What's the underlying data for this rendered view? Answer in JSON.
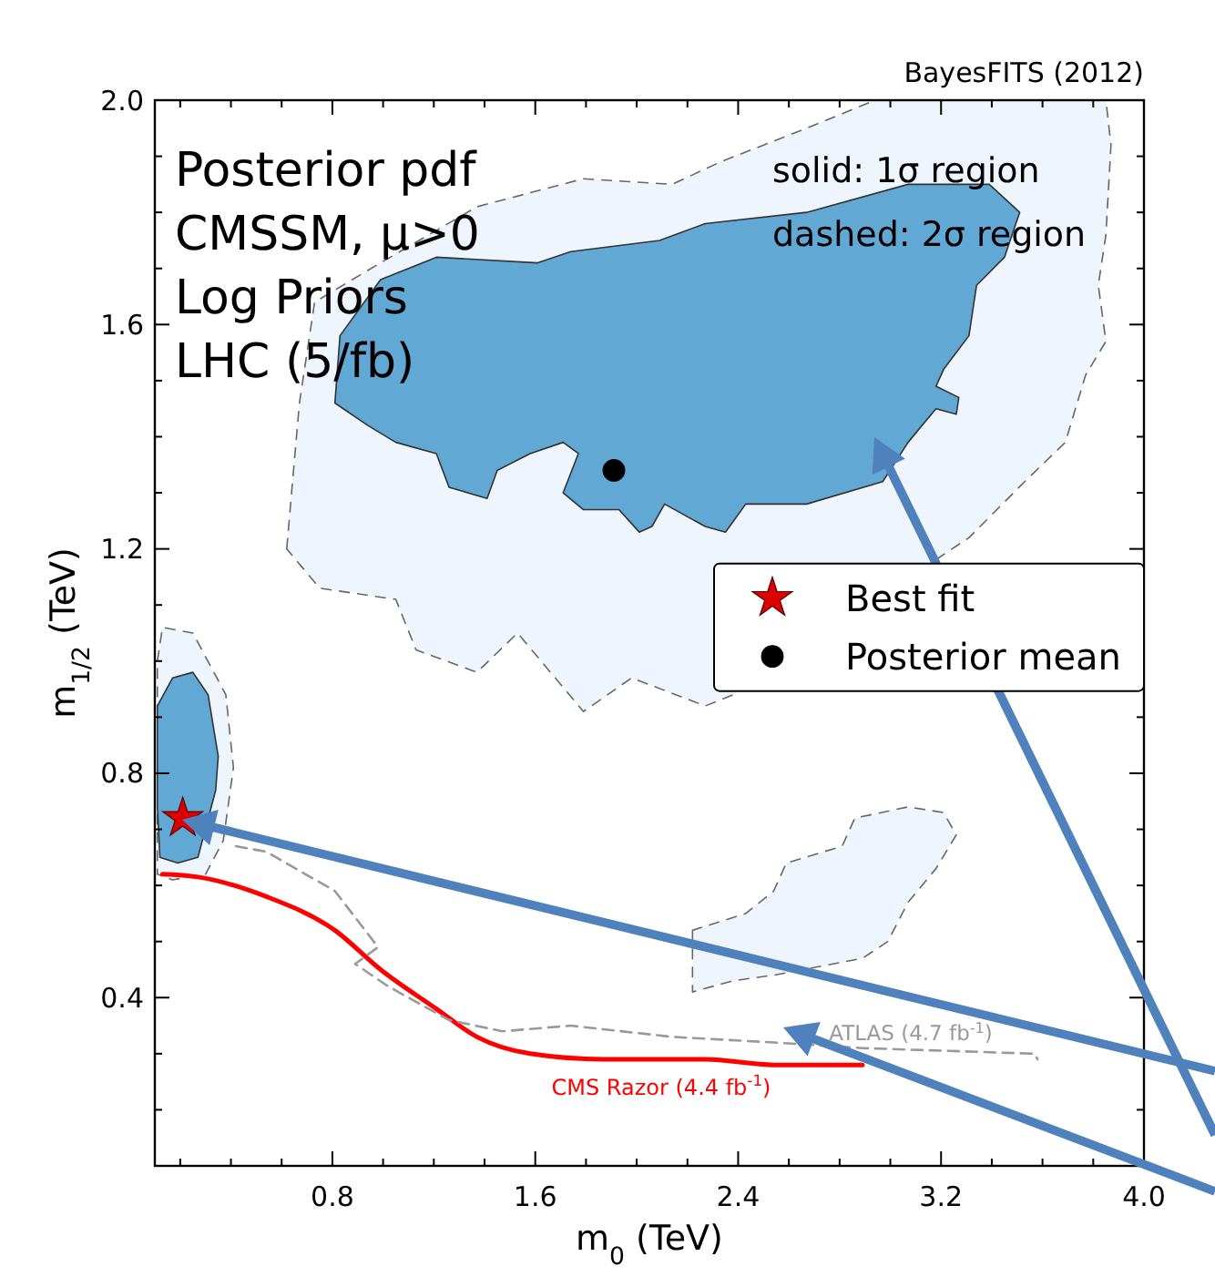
{
  "chart_data": {
    "type": "line",
    "annotations": [
      "Posterior pdf",
      "CMSSM, μ>0",
      "Log Priors",
      "LHC (5/fb)",
      "solid: 1σ region",
      "dashed: 2σ region",
      "BayesFITS (2012)",
      "CMS Razor (4.4 fb$^{-1}$)",
      "ATLAS (4.7 fb$^{-1}$)"
    ],
    "xlabel": "m$_{0}$ (TeV)",
    "ylabel": "m$_{1/2}$ (TeV)",
    "xlim": [
      0.1,
      4.0
    ],
    "ylim": [
      0.1,
      2.0
    ],
    "xticks": [
      {
        "value": 0.2,
        "label": null
      },
      {
        "value": 0.4,
        "label": null
      },
      {
        "value": 0.6,
        "label": null
      },
      0.8,
      {
        "value": 1.0,
        "label": null
      },
      {
        "value": 1.2,
        "label": null
      },
      {
        "value": 1.4,
        "label": null
      },
      1.6,
      {
        "value": 1.8,
        "label": null
      },
      {
        "value": 2.0,
        "label": null
      },
      {
        "value": 2.2,
        "label": null
      },
      2.4,
      {
        "value": 2.6,
        "label": null
      },
      {
        "value": 2.8,
        "label": null
      },
      {
        "value": 3.0,
        "label": null
      },
      3.2,
      {
        "value": 3.4,
        "label": null
      },
      {
        "value": 3.6,
        "label": null
      },
      {
        "value": 3.8,
        "label": null
      },
      {
        "value": 4.0,
        "label": "4.0"
      }
    ],
    "yticks": [
      {
        "value": 0.2,
        "label": null
      },
      {
        "value": 0.3,
        "label": null
      },
      0.4,
      {
        "value": 0.5,
        "label": null
      },
      {
        "value": 0.6,
        "label": null
      },
      {
        "value": 0.7,
        "label": null
      },
      0.8,
      {
        "value": 0.9,
        "label": null
      },
      {
        "value": 1.0,
        "label": null
      },
      {
        "value": 1.1,
        "label": null
      },
      1.2,
      {
        "value": 1.3,
        "label": null
      },
      {
        "value": 1.4,
        "label": null
      },
      {
        "value": 1.5,
        "label": null
      },
      1.6,
      {
        "value": 1.7,
        "label": null
      },
      {
        "value": 1.8,
        "label": null
      },
      {
        "value": 1.9,
        "label": null
      },
      {
        "value": 2.0,
        "label": "2.0"
      }
    ],
    "legend": "right",
    "series": [
      {
        "type": "area",
        "color": "#eef5fc",
        "line_style": "dashed",
        "x": [
          0.62,
          0.67,
          0.73,
          0.99,
          1.37,
          1.79,
          2.14,
          2.33,
          2.67,
          2.94,
          3.34,
          3.85,
          3.87,
          3.85,
          3.82,
          3.85,
          3.77,
          3.69,
          3.53,
          3.31,
          2.38,
          2.27,
          1.98,
          1.79,
          1.53,
          1.37,
          1.13,
          1.05,
          0.75
        ],
        "values": [
          1.2,
          1.46,
          1.64,
          1.71,
          1.81,
          1.86,
          1.85,
          1.89,
          1.95,
          2.0,
          2.0,
          2.0,
          1.92,
          1.76,
          1.67,
          1.57,
          1.51,
          1.39,
          1.32,
          1.22,
          0.94,
          0.92,
          0.97,
          0.91,
          1.05,
          0.98,
          1.02,
          1.11,
          1.13
        ]
      },
      {
        "type": "area",
        "color": "#eef5fc",
        "line_style": "dashed",
        "x": [
          0.11,
          0.13,
          0.25,
          0.38,
          0.41,
          0.37,
          0.3,
          0.17,
          0.11
        ],
        "values": [
          1.0,
          1.06,
          1.05,
          0.94,
          0.81,
          0.68,
          0.62,
          0.61,
          0.62
        ]
      },
      {
        "type": "area",
        "color": "#eef5fc",
        "line_style": "dashed",
        "x": [
          2.22,
          2.22,
          2.38,
          2.54,
          2.89,
          2.99,
          3.07,
          3.18,
          3.26,
          3.21,
          3.07,
          2.86,
          2.81,
          2.59,
          2.54,
          2.43
        ],
        "values": [
          0.52,
          0.41,
          0.43,
          0.44,
          0.47,
          0.5,
          0.57,
          0.63,
          0.69,
          0.73,
          0.74,
          0.72,
          0.67,
          0.64,
          0.59,
          0.55
        ]
      },
      {
        "type": "area",
        "color": "#62a8d4",
        "line_style": "solid",
        "x": [
          0.81,
          0.83,
          0.99,
          1.21,
          1.61,
          1.74,
          2.09,
          2.27,
          2.67,
          3.07,
          3.39,
          3.51,
          3.45,
          3.34,
          3.31,
          3.21,
          3.18,
          3.27,
          3.26,
          3.18,
          3.07,
          2.97,
          2.67,
          2.43,
          2.35,
          2.27,
          2.11,
          2.06,
          2.01,
          1.93,
          1.79,
          1.71,
          1.77,
          1.71,
          1.58,
          1.45,
          1.41,
          1.26,
          1.21,
          1.05,
          0.94
        ],
        "values": [
          1.46,
          1.58,
          1.68,
          1.72,
          1.71,
          1.73,
          1.75,
          1.78,
          1.8,
          1.85,
          1.85,
          1.8,
          1.72,
          1.67,
          1.58,
          1.52,
          1.49,
          1.47,
          1.44,
          1.45,
          1.39,
          1.32,
          1.28,
          1.28,
          1.23,
          1.24,
          1.28,
          1.24,
          1.23,
          1.27,
          1.27,
          1.3,
          1.37,
          1.39,
          1.37,
          1.34,
          1.29,
          1.31,
          1.37,
          1.39,
          1.42
        ]
      },
      {
        "type": "area",
        "color": "#62a8d4",
        "line_style": "solid",
        "x": [
          0.11,
          0.17,
          0.25,
          0.31,
          0.35,
          0.34,
          0.27,
          0.19,
          0.12,
          0.11
        ],
        "values": [
          0.92,
          0.97,
          0.98,
          0.94,
          0.83,
          0.77,
          0.65,
          0.64,
          0.65,
          0.74
        ]
      },
      {
        "color": "#ff0000",
        "line_style": "solid",
        "x": [
          0.13,
          0.27,
          0.54,
          0.81,
          0.99,
          1.21,
          1.37,
          1.58,
          1.87,
          2.27,
          2.54,
          2.89
        ],
        "values": [
          0.62,
          0.615,
          0.58,
          0.52,
          0.45,
          0.38,
          0.33,
          0.3,
          0.29,
          0.29,
          0.28,
          0.28
        ]
      },
      {
        "color": "#999999",
        "line_style": "dashed",
        "x": [
          0.42,
          0.54,
          0.81,
          0.98,
          0.89,
          1.02,
          1.26,
          1.47,
          1.74,
          2.14,
          2.54,
          2.89,
          3.57,
          3.58
        ],
        "values": [
          0.67,
          0.66,
          0.59,
          0.49,
          0.46,
          0.42,
          0.36,
          0.34,
          0.35,
          0.33,
          0.32,
          0.31,
          0.3,
          0.29
        ]
      },
      {
        "type": "scatter",
        "name": "Best fit",
        "color": "#dd0000",
        "marker": "star",
        "x": [
          0.21
        ],
        "values": [
          0.72
        ]
      },
      {
        "type": "scatter",
        "name": "Posterior mean",
        "color": "#000000",
        "marker": "circle",
        "x": [
          1.91
        ],
        "values": [
          1.34
        ]
      }
    ]
  }
}
